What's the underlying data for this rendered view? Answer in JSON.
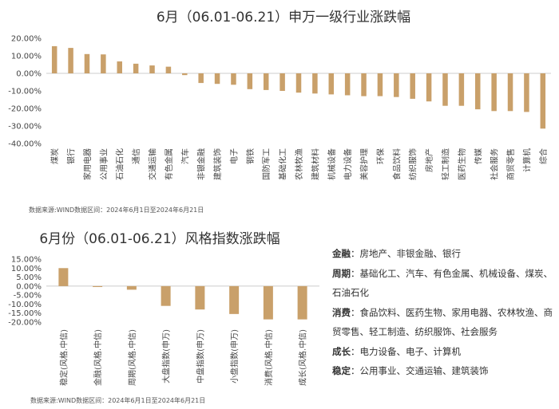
{
  "chart_data": [
    {
      "type": "bar",
      "title": "6月（06.01-06.21）申万一级行业涨跌幅",
      "categories": [
        "煤炭",
        "银行",
        "家用电器",
        "公用事业",
        "石油石化",
        "通信",
        "交通运输",
        "有色金属",
        "汽车",
        "非银金融",
        "建筑装饰",
        "电子",
        "钢铁",
        "国防军工",
        "基础化工",
        "农林牧渔",
        "建筑材料",
        "机械设备",
        "电力设备",
        "美容护理",
        "环保",
        "食品饮料",
        "纺织服饰",
        "房地产",
        "轻工制造",
        "医药生物",
        "传媒",
        "社会服务",
        "商贸零售",
        "计算机",
        "综合"
      ],
      "values": [
        15.5,
        14.5,
        11.0,
        10.8,
        6.8,
        5.5,
        4.5,
        3.8,
        -1.0,
        -5.5,
        -6.0,
        -6.5,
        -9.0,
        -9.5,
        -10.0,
        -11.0,
        -11.5,
        -12.0,
        -12.5,
        -13.0,
        -13.0,
        -13.5,
        -14.5,
        -16.0,
        -18.5,
        -18.5,
        -20.5,
        -21.5,
        -21.5,
        -22.0,
        -31.5
      ],
      "y_ticks": [
        "20.00%",
        "10.00%",
        "0.00%",
        "-10.00%",
        "-20.00%",
        "-30.00%",
        "-40.00%"
      ],
      "ylim": [
        -40,
        20
      ],
      "source": "数据来源:WIND数据区间：2024年6月1日至2024年6月21日",
      "bar_color": "#c9a06a"
    },
    {
      "type": "bar",
      "title": "6月份（06.01-06.21）风格指数涨跌幅",
      "categories": [
        "稳定(风格.中信)",
        "金融(风格.中信)",
        "周期(风格.中信)",
        "大盘指数(申万)",
        "中盘指数(申万)",
        "小盘指数(申万)",
        "消费(风格.中信)",
        "成长(风格.中信)"
      ],
      "values": [
        10.0,
        -0.5,
        -2.0,
        -11.0,
        -13.0,
        -15.5,
        -18.5,
        -18.5
      ],
      "y_ticks": [
        "15.00%",
        "10.00%",
        "5.00%",
        "0.00%",
        "-5.00%",
        "-10.00%",
        "-15.00%",
        "-20.00%"
      ],
      "ylim": [
        -20,
        15
      ],
      "source": "数据来源:WIND数据区间：2024年6月1日至2024年6月21日",
      "bar_color": "#c9a06a"
    }
  ],
  "legend": [
    {
      "key": "金融",
      "text": "：房地产、非银金融、银行"
    },
    {
      "key": "周期",
      "text": "：基础化工、汽车、有色金属、机械设备、煤炭、石油石化"
    },
    {
      "key": "消费",
      "text": "：食品饮料、医药生物、家用电器、农林牧渔、商贸零售、轻工制造、纺织服饰、社会服务"
    },
    {
      "key": "成长",
      "text": "：电力设备、电子、计算机"
    },
    {
      "key": "稳定",
      "text": "：公用事业、交通运输、建筑装饰"
    }
  ]
}
